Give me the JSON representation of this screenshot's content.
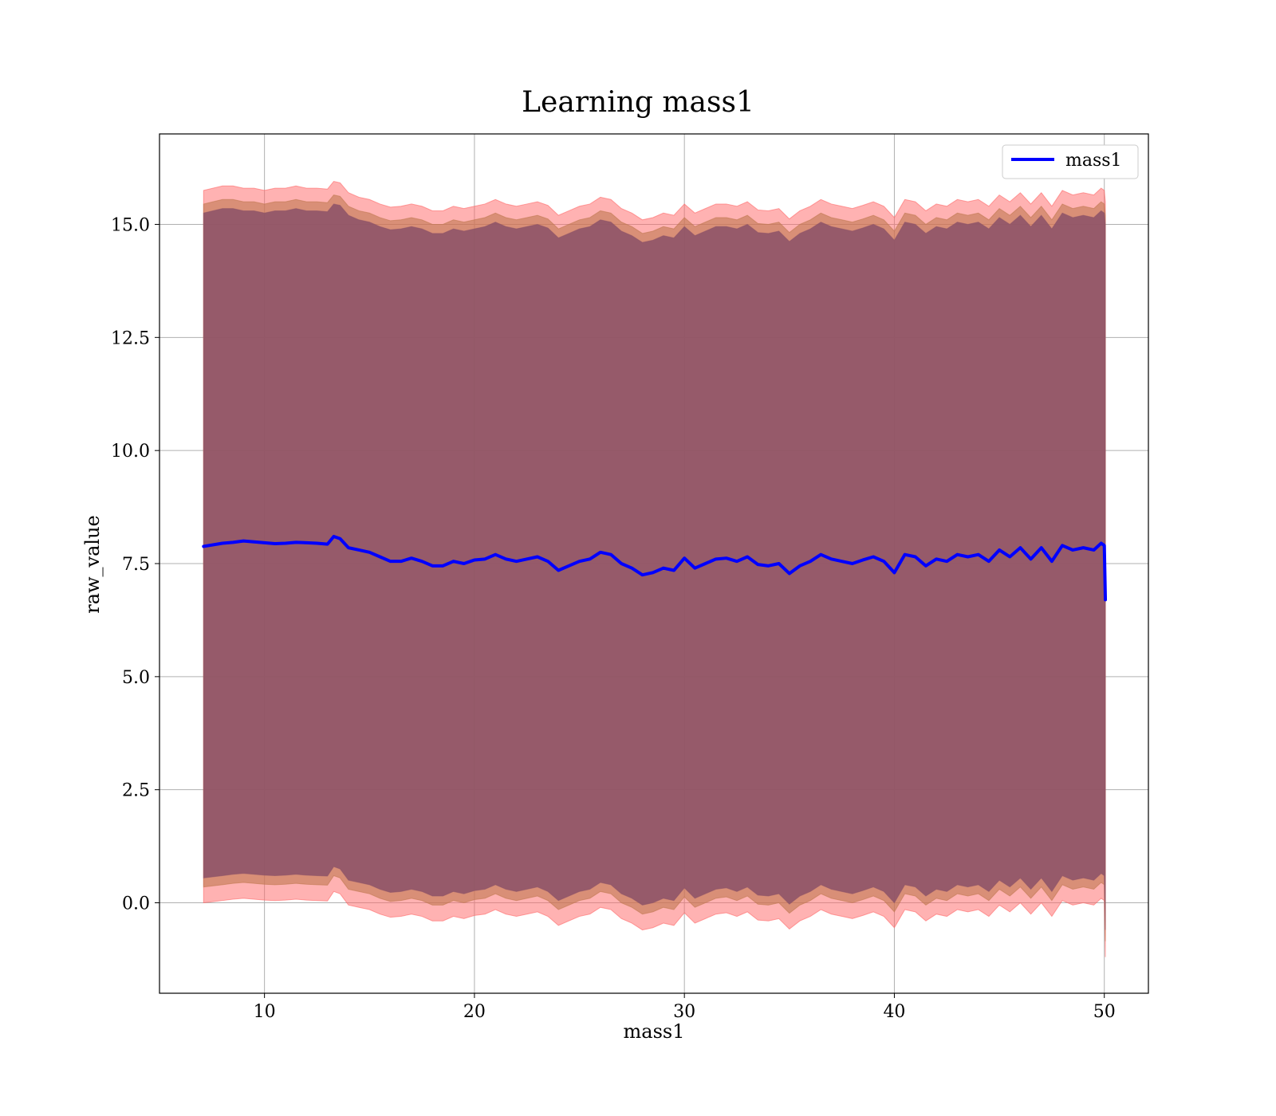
{
  "chart_data": {
    "type": "line",
    "title": "Learning mass1",
    "xlabel": "mass1",
    "ylabel": "raw_value",
    "xlim": [
      5,
      52.1
    ],
    "ylim": [
      -2.0,
      17.0
    ],
    "x_ticks": [
      10,
      20,
      30,
      40,
      50
    ],
    "x_tick_labels": [
      "10",
      "20",
      "30",
      "40",
      "50"
    ],
    "y_ticks": [
      0.0,
      2.5,
      5.0,
      7.5,
      10.0,
      12.5,
      15.0
    ],
    "y_tick_labels": [
      "0.0",
      "2.5",
      "5.0",
      "7.5",
      "10.0",
      "12.5",
      "15.0"
    ],
    "grid": true,
    "legend": {
      "position": "top-right",
      "entries": [
        "mass1"
      ]
    },
    "x": [
      7.1,
      8,
      8.5,
      9,
      9.5,
      10,
      10.5,
      11,
      11.5,
      12,
      12.5,
      13,
      13.3,
      13.6,
      14,
      14.5,
      15,
      15.5,
      16,
      16.5,
      17,
      17.5,
      18,
      18.5,
      19,
      19.5,
      20,
      20.5,
      21,
      21.5,
      22,
      22.5,
      23,
      23.5,
      24,
      24.5,
      25,
      25.5,
      26,
      26.5,
      27,
      27.5,
      28,
      28.5,
      29,
      29.5,
      30,
      30.5,
      31,
      31.5,
      32,
      32.5,
      33,
      33.5,
      34,
      34.5,
      35,
      35.5,
      36,
      36.5,
      37,
      37.5,
      38,
      38.5,
      39,
      39.5,
      40,
      40.5,
      41,
      41.5,
      42,
      42.5,
      43,
      43.5,
      44,
      44.5,
      45,
      45.5,
      46,
      46.5,
      47,
      47.5,
      48,
      48.5,
      49,
      49.5,
      49.85,
      50,
      50.05
    ],
    "series": [
      {
        "name": "mass1",
        "color": "#0000ff",
        "values": [
          7.88,
          7.95,
          7.97,
          8.0,
          7.98,
          7.96,
          7.94,
          7.95,
          7.97,
          7.96,
          7.95,
          7.93,
          8.1,
          8.05,
          7.85,
          7.8,
          7.75,
          7.65,
          7.55,
          7.55,
          7.62,
          7.55,
          7.45,
          7.45,
          7.55,
          7.5,
          7.58,
          7.6,
          7.7,
          7.6,
          7.55,
          7.6,
          7.65,
          7.55,
          7.35,
          7.45,
          7.55,
          7.6,
          7.75,
          7.7,
          7.5,
          7.4,
          7.25,
          7.3,
          7.4,
          7.35,
          7.62,
          7.4,
          7.5,
          7.6,
          7.62,
          7.55,
          7.65,
          7.48,
          7.45,
          7.5,
          7.28,
          7.45,
          7.55,
          7.7,
          7.6,
          7.55,
          7.5,
          7.58,
          7.65,
          7.55,
          7.3,
          7.7,
          7.65,
          7.45,
          7.6,
          7.55,
          7.7,
          7.65,
          7.7,
          7.55,
          7.8,
          7.65,
          7.85,
          7.6,
          7.85,
          7.55,
          7.9,
          7.8,
          7.85,
          7.8,
          7.95,
          7.9,
          6.7
        ]
      }
    ],
    "bands": [
      {
        "color": "#ff6666",
        "opacity": 0.5,
        "upper": [
          15.75,
          15.85,
          15.85,
          15.8,
          15.8,
          15.75,
          15.8,
          15.8,
          15.85,
          15.8,
          15.8,
          15.78,
          15.95,
          15.92,
          15.7,
          15.6,
          15.55,
          15.45,
          15.38,
          15.4,
          15.45,
          15.4,
          15.3,
          15.3,
          15.4,
          15.35,
          15.4,
          15.45,
          15.55,
          15.45,
          15.4,
          15.45,
          15.5,
          15.42,
          15.2,
          15.3,
          15.4,
          15.45,
          15.6,
          15.55,
          15.35,
          15.25,
          15.1,
          15.15,
          15.25,
          15.2,
          15.45,
          15.25,
          15.35,
          15.45,
          15.45,
          15.4,
          15.5,
          15.32,
          15.3,
          15.35,
          15.12,
          15.3,
          15.4,
          15.55,
          15.45,
          15.4,
          15.35,
          15.42,
          15.5,
          15.4,
          15.15,
          15.55,
          15.5,
          15.3,
          15.45,
          15.4,
          15.55,
          15.5,
          15.55,
          15.4,
          15.65,
          15.5,
          15.7,
          15.45,
          15.7,
          15.4,
          15.75,
          15.65,
          15.7,
          15.65,
          15.8,
          15.75,
          15.5
        ],
        "lower": [
          0.0,
          0.05,
          0.08,
          0.1,
          0.08,
          0.06,
          0.05,
          0.06,
          0.08,
          0.06,
          0.05,
          0.04,
          0.25,
          0.2,
          -0.05,
          -0.1,
          -0.15,
          -0.25,
          -0.32,
          -0.3,
          -0.25,
          -0.3,
          -0.4,
          -0.4,
          -0.3,
          -0.35,
          -0.28,
          -0.25,
          -0.15,
          -0.25,
          -0.3,
          -0.25,
          -0.2,
          -0.3,
          -0.5,
          -0.4,
          -0.3,
          -0.25,
          -0.1,
          -0.15,
          -0.35,
          -0.45,
          -0.6,
          -0.55,
          -0.45,
          -0.5,
          -0.22,
          -0.45,
          -0.35,
          -0.25,
          -0.22,
          -0.3,
          -0.2,
          -0.38,
          -0.4,
          -0.35,
          -0.58,
          -0.4,
          -0.3,
          -0.15,
          -0.25,
          -0.3,
          -0.35,
          -0.28,
          -0.2,
          -0.3,
          -0.55,
          -0.15,
          -0.2,
          -0.4,
          -0.25,
          -0.3,
          -0.15,
          -0.2,
          -0.15,
          -0.3,
          -0.05,
          -0.2,
          0.0,
          -0.25,
          0.0,
          -0.3,
          0.05,
          -0.05,
          0.0,
          -0.05,
          0.1,
          0.05,
          -1.2
        ]
      },
      {
        "color": "#c07850",
        "opacity": 0.6,
        "upper": [
          15.45,
          15.55,
          15.55,
          15.5,
          15.5,
          15.45,
          15.5,
          15.5,
          15.55,
          15.5,
          15.5,
          15.48,
          15.65,
          15.62,
          15.4,
          15.3,
          15.25,
          15.15,
          15.08,
          15.1,
          15.15,
          15.1,
          15.0,
          15.0,
          15.1,
          15.05,
          15.1,
          15.15,
          15.25,
          15.15,
          15.1,
          15.15,
          15.2,
          15.12,
          14.9,
          15.0,
          15.1,
          15.15,
          15.3,
          15.25,
          15.05,
          14.95,
          14.8,
          14.85,
          14.95,
          14.9,
          15.15,
          14.95,
          15.05,
          15.15,
          15.15,
          15.1,
          15.2,
          15.02,
          15.0,
          15.05,
          14.82,
          15.0,
          15.1,
          15.25,
          15.15,
          15.1,
          15.05,
          15.12,
          15.2,
          15.1,
          14.85,
          15.25,
          15.2,
          15.0,
          15.15,
          15.1,
          15.25,
          15.2,
          15.25,
          15.1,
          15.35,
          15.2,
          15.4,
          15.15,
          15.4,
          15.1,
          15.45,
          15.35,
          15.4,
          15.35,
          15.5,
          15.45,
          15.2
        ],
        "lower": [
          0.35,
          0.4,
          0.43,
          0.45,
          0.43,
          0.41,
          0.4,
          0.41,
          0.43,
          0.41,
          0.4,
          0.39,
          0.6,
          0.55,
          0.3,
          0.25,
          0.2,
          0.1,
          0.03,
          0.05,
          0.1,
          0.05,
          -0.05,
          -0.05,
          0.05,
          0.0,
          0.07,
          0.1,
          0.2,
          0.1,
          0.05,
          0.1,
          0.15,
          0.05,
          -0.15,
          -0.05,
          0.05,
          0.1,
          0.25,
          0.2,
          0.0,
          -0.1,
          -0.25,
          -0.2,
          -0.1,
          -0.15,
          0.13,
          -0.1,
          0.0,
          0.1,
          0.13,
          0.05,
          0.15,
          -0.03,
          -0.05,
          0.0,
          -0.23,
          -0.05,
          0.05,
          0.2,
          0.1,
          0.05,
          0.0,
          0.07,
          0.15,
          0.05,
          -0.2,
          0.2,
          0.15,
          -0.05,
          0.1,
          0.05,
          0.2,
          0.15,
          0.2,
          0.05,
          0.3,
          0.15,
          0.35,
          0.1,
          0.35,
          0.05,
          0.4,
          0.3,
          0.35,
          0.3,
          0.45,
          0.4,
          -0.85
        ]
      },
      {
        "color": "#8e5468",
        "opacity": 0.9,
        "upper": [
          15.25,
          15.35,
          15.35,
          15.3,
          15.3,
          15.25,
          15.3,
          15.3,
          15.35,
          15.3,
          15.3,
          15.28,
          15.45,
          15.42,
          15.2,
          15.1,
          15.05,
          14.95,
          14.88,
          14.9,
          14.95,
          14.9,
          14.8,
          14.8,
          14.9,
          14.85,
          14.9,
          14.95,
          15.05,
          14.95,
          14.9,
          14.95,
          15.0,
          14.92,
          14.7,
          14.8,
          14.9,
          14.95,
          15.1,
          15.05,
          14.85,
          14.75,
          14.6,
          14.65,
          14.75,
          14.7,
          14.95,
          14.75,
          14.85,
          14.95,
          14.95,
          14.9,
          15.0,
          14.82,
          14.8,
          14.85,
          14.62,
          14.8,
          14.9,
          15.05,
          14.95,
          14.9,
          14.85,
          14.92,
          15.0,
          14.9,
          14.65,
          15.05,
          15.0,
          14.8,
          14.95,
          14.9,
          15.05,
          15.0,
          15.05,
          14.9,
          15.15,
          15.0,
          15.2,
          14.95,
          15.2,
          14.9,
          15.25,
          15.15,
          15.2,
          15.15,
          15.3,
          15.25,
          15.0
        ],
        "lower": [
          0.55,
          0.6,
          0.63,
          0.65,
          0.63,
          0.61,
          0.6,
          0.61,
          0.63,
          0.61,
          0.6,
          0.59,
          0.8,
          0.75,
          0.5,
          0.45,
          0.4,
          0.3,
          0.23,
          0.25,
          0.3,
          0.25,
          0.15,
          0.15,
          0.25,
          0.2,
          0.27,
          0.3,
          0.4,
          0.3,
          0.25,
          0.3,
          0.35,
          0.25,
          0.05,
          0.15,
          0.25,
          0.3,
          0.45,
          0.4,
          0.2,
          0.1,
          -0.05,
          0.0,
          0.1,
          0.05,
          0.33,
          0.1,
          0.2,
          0.3,
          0.33,
          0.25,
          0.35,
          0.17,
          0.15,
          0.2,
          -0.03,
          0.15,
          0.25,
          0.4,
          0.3,
          0.25,
          0.2,
          0.27,
          0.35,
          0.25,
          0.0,
          0.4,
          0.35,
          0.15,
          0.3,
          0.25,
          0.4,
          0.35,
          0.4,
          0.25,
          0.5,
          0.35,
          0.55,
          0.3,
          0.55,
          0.25,
          0.6,
          0.5,
          0.55,
          0.5,
          0.65,
          0.6,
          -0.6
        ]
      }
    ]
  }
}
